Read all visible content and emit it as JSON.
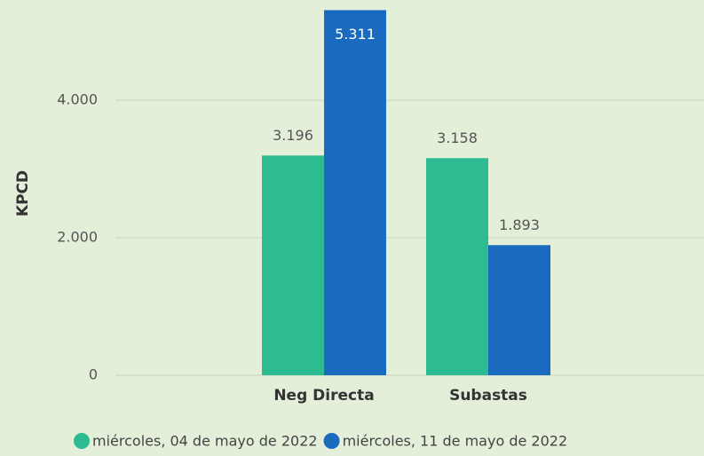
{
  "chart_data": {
    "type": "bar",
    "y_label": "KPCD",
    "categories": [
      "Neg Directa",
      "Subastas"
    ],
    "series": [
      {
        "name": "miércoles, 04 de mayo de 2022",
        "color": "#2dbb91",
        "values": [
          3196,
          3158
        ],
        "value_labels": [
          "3.196",
          "3.158"
        ]
      },
      {
        "name": "miércoles, 11 de mayo de 2022",
        "color": "#1a6bbf",
        "values": [
          5311,
          1893
        ],
        "value_labels": [
          "5.311",
          "1.893"
        ]
      }
    ],
    "ylim": [
      0,
      5500
    ],
    "yticks": [
      0,
      {
        "value": 2000,
        "label": "2.000"
      },
      {
        "value": 4000,
        "label": "4.000"
      }
    ],
    "grid": true
  }
}
